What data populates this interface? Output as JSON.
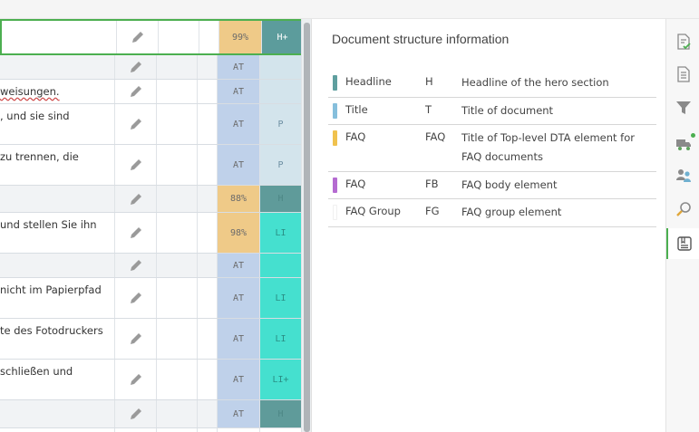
{
  "grid": {
    "rows": [
      {
        "text": "",
        "pct": "99%",
        "tag": "H+"
      },
      {
        "text": "",
        "pct": "AT",
        "tag": ""
      },
      {
        "text": "weisungen.",
        "pct": "AT",
        "tag": ""
      },
      {
        "text": ", und sie sind",
        "pct": "AT",
        "tag": "P"
      },
      {
        "text": "zu trennen, die",
        "pct": "AT",
        "tag": "P"
      },
      {
        "text": "",
        "pct": "88%",
        "tag": "H"
      },
      {
        "text": " und stellen Sie ihn",
        "pct": "98%",
        "tag": "LI"
      },
      {
        "text": "",
        "pct": "AT",
        "tag": ""
      },
      {
        "text": "nicht im Papierpfad",
        "pct": "AT",
        "tag": "LI"
      },
      {
        "text": "te des Fotodruckers",
        "pct": "AT",
        "tag": "LI"
      },
      {
        "text": "schließen und",
        "pct": "AT",
        "tag": "LI+"
      },
      {
        "text": "",
        "pct": "AT",
        "tag": "H"
      },
      {
        "text": "",
        "pct": "",
        "tag": ""
      }
    ]
  },
  "panel": {
    "title": "Document structure information",
    "legend": [
      {
        "name": "Headline",
        "abbr": "H",
        "desc": "Headline of the hero section",
        "color": "#5f9f9f"
      },
      {
        "name": "Title",
        "abbr": "T",
        "desc": "Title of document",
        "color": "#86bfdc"
      },
      {
        "name": "FAQ",
        "abbr": "FAQ",
        "desc": "Title of Top-level DTA element for FAQ  documents",
        "color": "#f0c24e"
      },
      {
        "name": "FAQ",
        "abbr": "FB",
        "desc": "FAQ body element",
        "color": "#b56bd1"
      },
      {
        "name": "FAQ  Group",
        "abbr": "FG",
        "desc": "FAQ group element",
        "color": "#ffffff"
      }
    ]
  },
  "toolbar": {
    "icons": [
      "document-check-icon",
      "document-icon",
      "filter-icon",
      "truck-icon",
      "users-icon",
      "search-icon",
      "structure-icon"
    ]
  }
}
